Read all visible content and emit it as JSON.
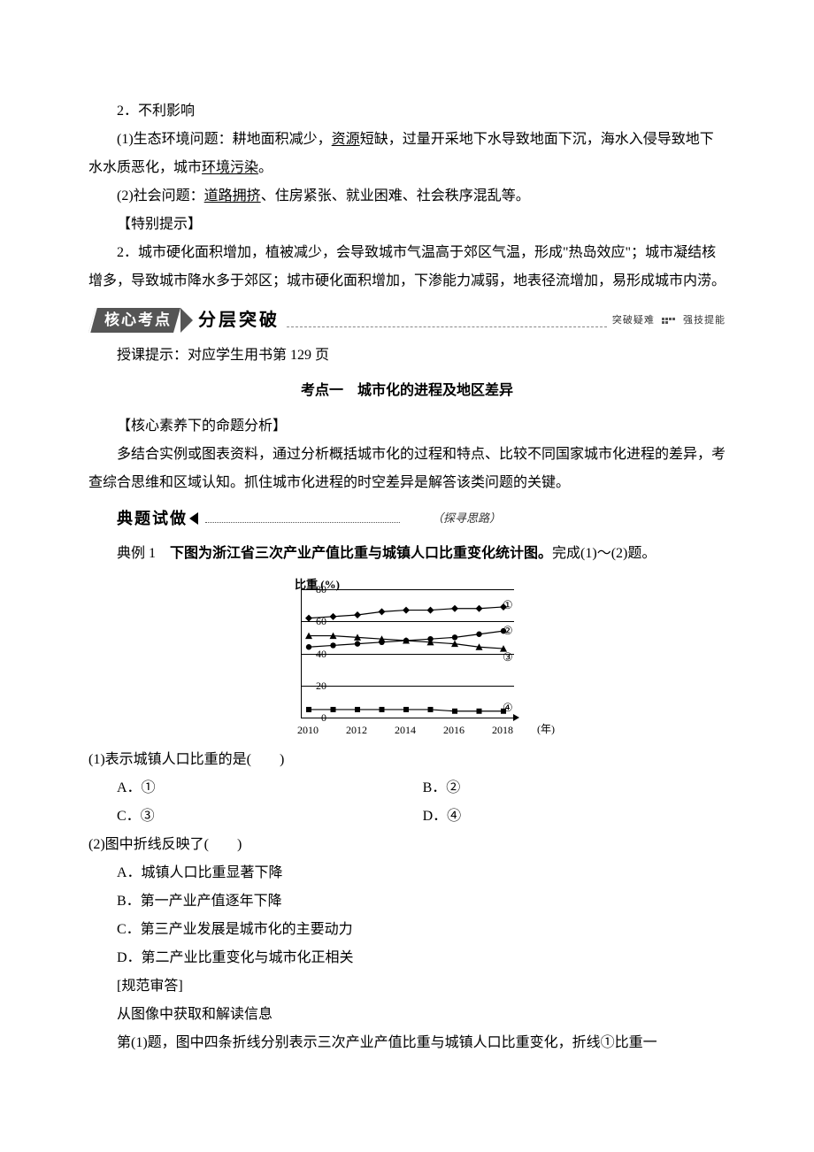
{
  "sec2": {
    "heading": "2．不利影响",
    "p1_a": "(1)生态环境问题：耕地面积减少，",
    "p1_u1": "资源",
    "p1_b": "短缺，过量开采地下水导致地面下沉，海水入侵导致地下水水质恶化，城市",
    "p1_u2": "环境污染",
    "p1_c": "。",
    "p2_a": "(2)社会问题：",
    "p2_u1": "道路拥挤",
    "p2_b": "、住房紧张、就业困难、社会秩序混乱等。"
  },
  "note": {
    "heading": "【特别提示】",
    "body": "2．城市硬化面积增加，植被减少，会导致城市气温高于郊区气温，形成\"热岛效应\"；城市凝结核增多，导致城市降水多于郊区；城市硬化面积增加，下渗能力减弱，地表径流增加，易形成城市内涝。"
  },
  "banner": {
    "left": "核心考点",
    "right": "分层突破",
    "tail": "突破疑难",
    "tail2": "强技提能"
  },
  "hint": "授课提示：对应学生用书第 129 页",
  "topic": "考点一　城市化的进程及地区差异",
  "analysis": {
    "heading": "【核心素养下的命题分析】",
    "body": "多结合实例或图表资料，通过分析概括城市化的过程和特点、比较不同国家城市化进程的差异，考查综合思维和区域认知。抓住城市化进程的时空差异是解答该类问题的关键。"
  },
  "subheader": {
    "lead": "典题试做",
    "paren": "（探寻思路）"
  },
  "example": {
    "label": "典例 1　",
    "stem": "下图为浙江省三次产业产值比重与城镇人口比重变化统计图。",
    "tail": "完成(1)～(2)题。"
  },
  "chart": {
    "y_unit": "比重 (%)",
    "x_unit": "(年)",
    "yticks": [
      "0",
      "20",
      "40",
      "60",
      "80"
    ],
    "xticks": [
      "2010",
      "2012",
      "2014",
      "2016",
      "2018"
    ],
    "labels": {
      "l1": "①",
      "l2": "②",
      "l3": "③",
      "l4": "④"
    },
    "ymax": 80,
    "series": {
      "s1": {
        "marker": "diamond",
        "y": [
          62,
          63,
          64,
          66,
          67,
          67,
          68,
          68,
          69
        ]
      },
      "s2": {
        "marker": "circle",
        "y": [
          44,
          45,
          46,
          47,
          48,
          49,
          50,
          52,
          54
        ]
      },
      "s3": {
        "marker": "triangle",
        "y": [
          51,
          51,
          50,
          49,
          48,
          47,
          46,
          44,
          43
        ]
      },
      "s4": {
        "marker": "square",
        "y": [
          5,
          5,
          5,
          5,
          5,
          5,
          4,
          4,
          4
        ]
      }
    },
    "colors": {
      "axis": "#000000",
      "line": "#000000",
      "marker_fill": "#000000"
    }
  },
  "q1": {
    "stem": "(1)表示城镇人口比重的是(　　)",
    "A": "A．①",
    "B": "B．②",
    "C": "C．③",
    "D": "D．④"
  },
  "q2": {
    "stem": "(2)图中折线反映了(　　)",
    "A": "A．城镇人口比重显著下降",
    "B": "B．第一产业产值逐年下降",
    "C": "C．第三产业发展是城市化的主要动力",
    "D": "D．第二产业比重变化与城市化正相关"
  },
  "ans": {
    "heading": "[规范审答]",
    "line1": "从图像中获取和解读信息",
    "line2": "第(1)题，图中四条折线分别表示三次产业产值比重与城镇人口比重变化，折线①比重一"
  }
}
